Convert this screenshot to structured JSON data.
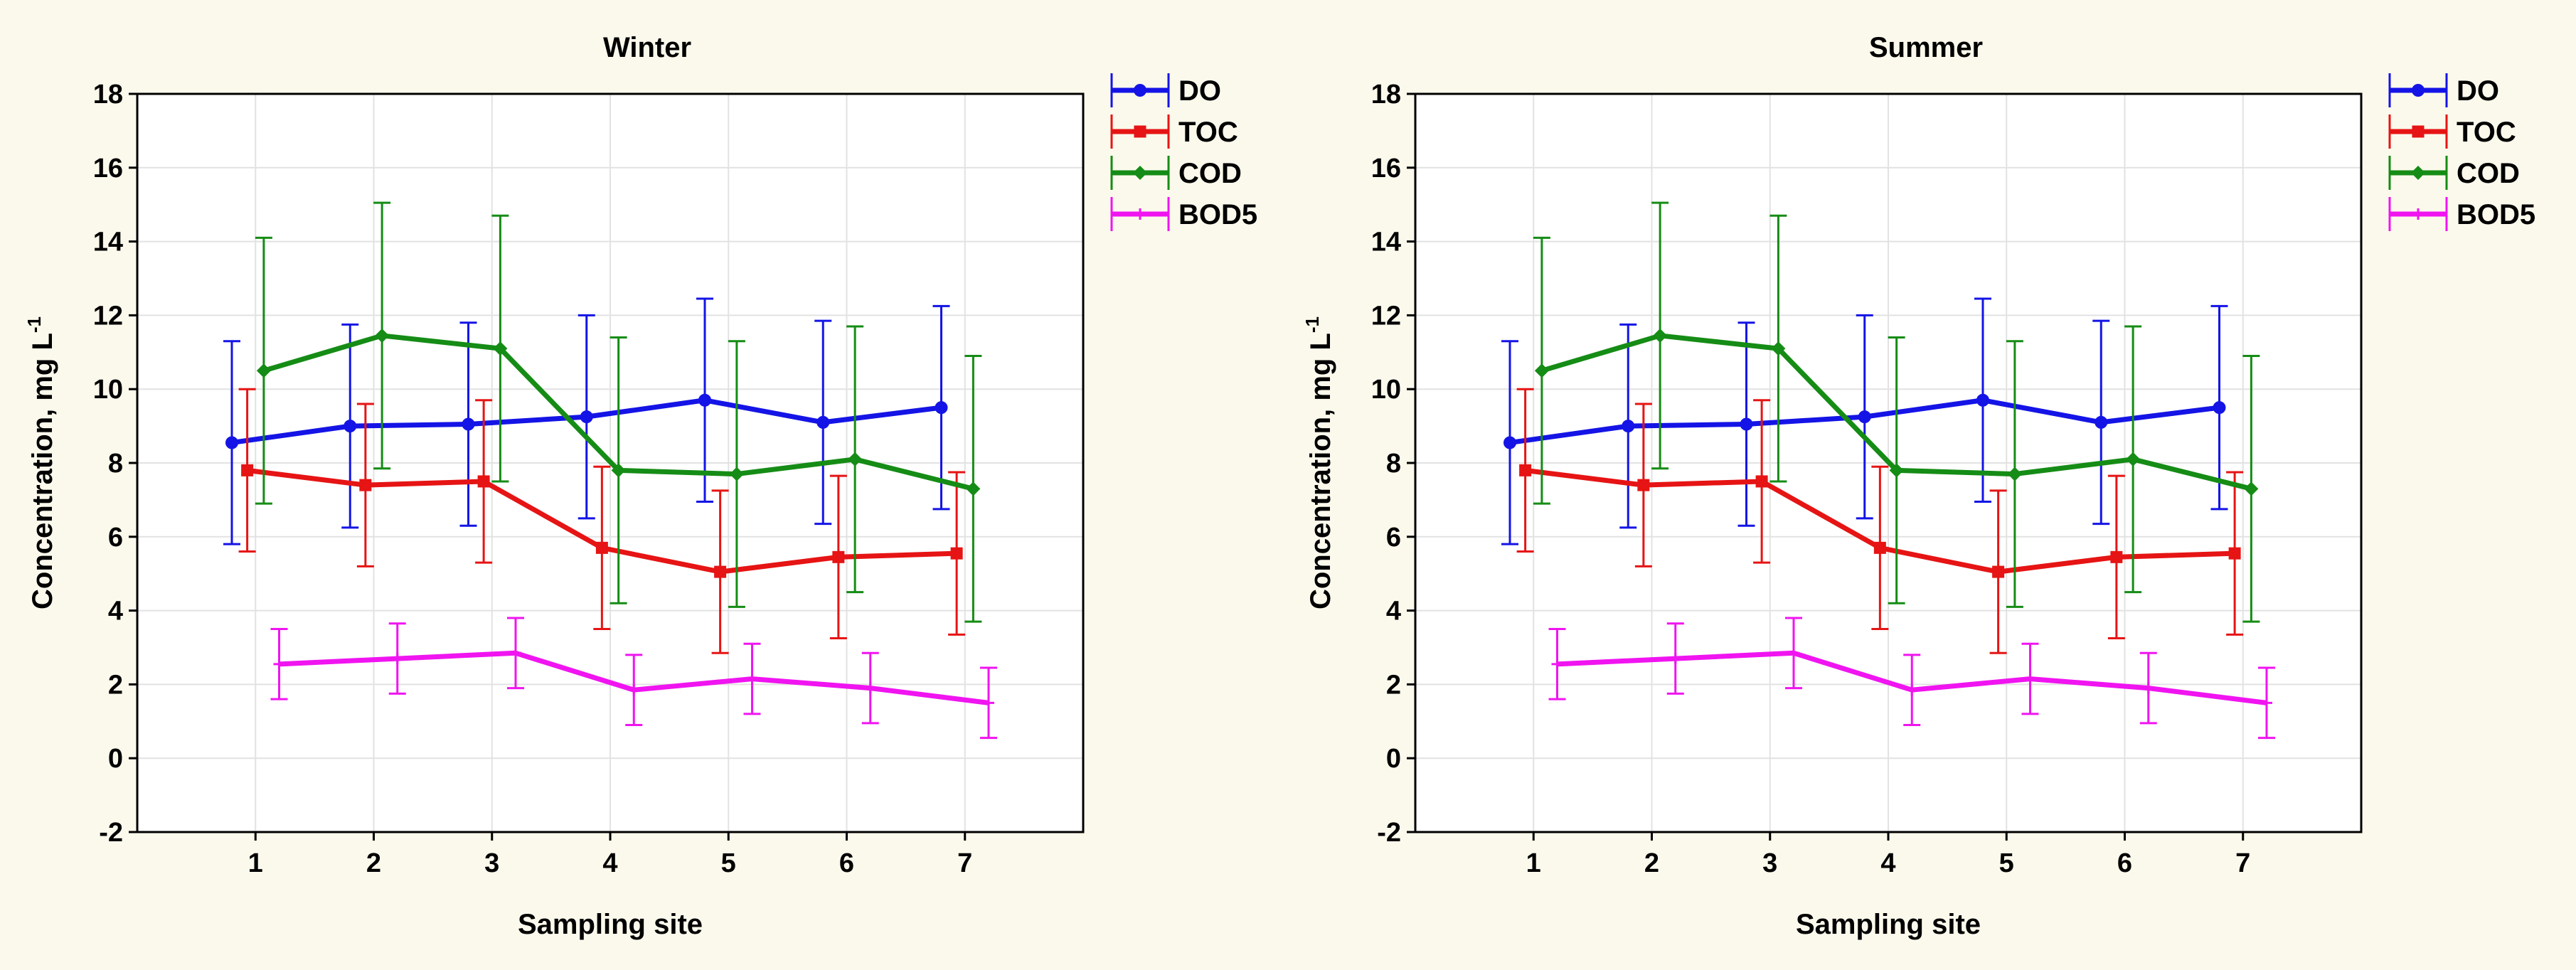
{
  "chart_data": [
    {
      "type": "line",
      "title": "Winter",
      "xlabel": "Sampling site",
      "ylabel": "Concentration, mg L",
      "ylabel_superscript": "-1",
      "x": [
        1,
        2,
        3,
        4,
        5,
        6,
        7
      ],
      "xlim": [
        0,
        8
      ],
      "ylim": [
        -2,
        18
      ],
      "yticks": [
        -2,
        0,
        2,
        4,
        6,
        8,
        10,
        12,
        14,
        16,
        18
      ],
      "grid": true,
      "legend": "top-right-outside",
      "series": [
        {
          "name": "DO",
          "color": "#1414e6",
          "marker": "circle",
          "offset": -0.2,
          "values": [
            8.55,
            9.0,
            9.05,
            9.25,
            9.7,
            9.1,
            9.5
          ],
          "err": [
            2.75,
            2.75,
            2.75,
            2.75,
            2.75,
            2.75,
            2.75
          ]
        },
        {
          "name": "TOC",
          "color": "#e61414",
          "marker": "square",
          "offset": -0.07,
          "values": [
            7.8,
            7.4,
            7.5,
            5.7,
            5.05,
            5.45,
            5.55
          ],
          "err": [
            2.2,
            2.2,
            2.2,
            2.2,
            2.2,
            2.2,
            2.2
          ]
        },
        {
          "name": "COD",
          "color": "#158c15",
          "marker": "diamond",
          "offset": 0.07,
          "values": [
            10.5,
            11.45,
            11.1,
            7.8,
            7.7,
            8.1,
            7.3
          ],
          "err": [
            3.6,
            3.6,
            3.6,
            3.6,
            3.6,
            3.6,
            3.6
          ]
        },
        {
          "name": "BOD5",
          "color": "#f014f0",
          "marker": "plus",
          "offset": 0.2,
          "values": [
            2.55,
            2.7,
            2.85,
            1.85,
            2.15,
            1.9,
            1.5
          ],
          "err": [
            0.95,
            0.95,
            0.95,
            0.95,
            0.95,
            0.95,
            0.95
          ]
        }
      ]
    },
    {
      "type": "line",
      "title": "Summer",
      "xlabel": "Sampling site",
      "ylabel": "Concentration, mg L",
      "ylabel_superscript": "-1",
      "x": [
        1,
        2,
        3,
        4,
        5,
        6,
        7
      ],
      "xlim": [
        0,
        8
      ],
      "ylim": [
        -2,
        18
      ],
      "yticks": [
        -2,
        0,
        2,
        4,
        6,
        8,
        10,
        12,
        14,
        16,
        18
      ],
      "grid": true,
      "legend": "top-right-outside",
      "series": [
        {
          "name": "DO",
          "color": "#1414e6",
          "marker": "circle",
          "offset": -0.2,
          "values": [
            8.55,
            9.0,
            9.05,
            9.25,
            9.7,
            9.1,
            9.5
          ],
          "err": [
            2.75,
            2.75,
            2.75,
            2.75,
            2.75,
            2.75,
            2.75
          ]
        },
        {
          "name": "TOC",
          "color": "#e61414",
          "marker": "square",
          "offset": -0.07,
          "values": [
            7.8,
            7.4,
            7.5,
            5.7,
            5.05,
            5.45,
            5.55
          ],
          "err": [
            2.2,
            2.2,
            2.2,
            2.2,
            2.2,
            2.2,
            2.2
          ]
        },
        {
          "name": "COD",
          "color": "#158c15",
          "marker": "diamond",
          "offset": 0.07,
          "values": [
            10.5,
            11.45,
            11.1,
            7.8,
            7.7,
            8.1,
            7.3
          ],
          "err": [
            3.6,
            3.6,
            3.6,
            3.6,
            3.6,
            3.6,
            3.6
          ]
        },
        {
          "name": "BOD5",
          "color": "#f014f0",
          "marker": "plus",
          "offset": 0.2,
          "values": [
            2.55,
            2.7,
            2.85,
            1.85,
            2.15,
            1.9,
            1.5
          ],
          "err": [
            0.95,
            0.95,
            0.95,
            0.95,
            0.95,
            0.95,
            0.95
          ]
        }
      ]
    }
  ]
}
